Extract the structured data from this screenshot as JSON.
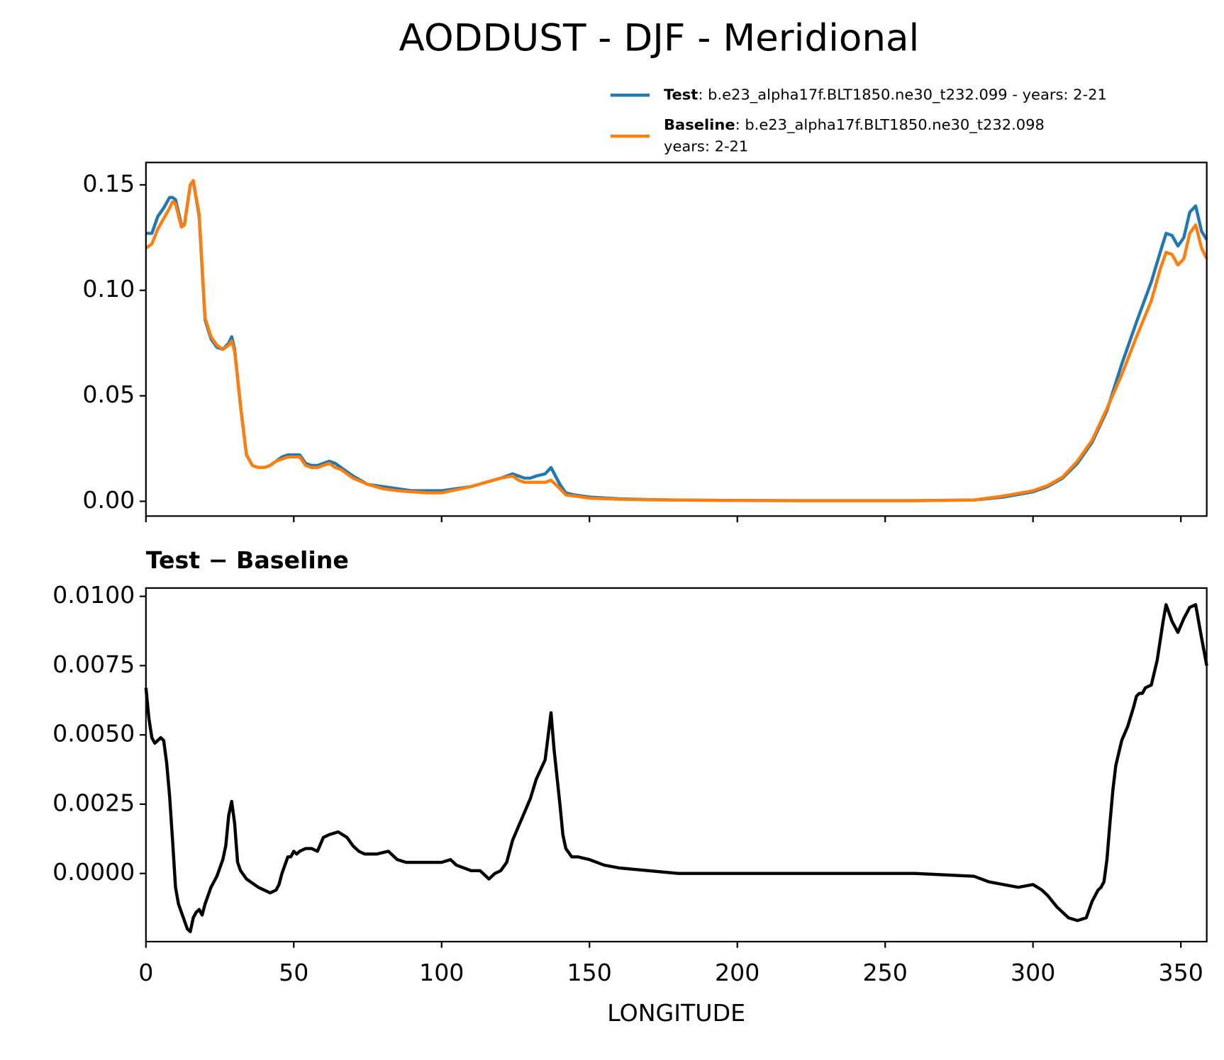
{
  "title": "AODDUST - DJF - Meridional",
  "chart_data": [
    {
      "type": "line",
      "x": [
        0,
        2,
        4,
        6,
        8,
        9,
        10,
        12,
        13,
        15,
        16,
        18,
        20,
        22,
        24,
        26,
        28,
        29,
        30,
        32,
        34,
        36,
        38,
        40,
        42,
        44,
        46,
        48,
        50,
        52,
        54,
        56,
        58,
        60,
        62,
        64,
        66,
        70,
        75,
        80,
        85,
        90,
        95,
        100,
        105,
        110,
        115,
        120,
        124,
        126,
        128,
        130,
        132,
        135,
        137,
        140,
        142,
        145,
        150,
        160,
        170,
        180,
        200,
        220,
        240,
        260,
        280,
        290,
        300,
        305,
        310,
        315,
        320,
        325,
        330,
        335,
        340,
        343,
        345,
        347,
        349,
        351,
        353,
        355,
        357,
        358.75
      ],
      "series": [
        {
          "name": "Test",
          "description": [
            ": b.e23_alpha17f.BLT1850.ne30_t232.099 - years: 2-21"
          ],
          "color": "#1f77b4",
          "values": [
            0.127,
            0.127,
            0.135,
            0.139,
            0.144,
            0.144,
            0.143,
            0.131,
            0.131,
            0.15,
            0.152,
            0.135,
            0.086,
            0.077,
            0.073,
            0.072,
            0.075,
            0.078,
            0.072,
            0.045,
            0.022,
            0.017,
            0.016,
            0.016,
            0.017,
            0.019,
            0.021,
            0.022,
            0.022,
            0.022,
            0.018,
            0.017,
            0.017,
            0.018,
            0.019,
            0.018,
            0.016,
            0.012,
            0.008,
            0.007,
            0.006,
            0.005,
            0.005,
            0.005,
            0.006,
            0.007,
            0.009,
            0.011,
            0.013,
            0.012,
            0.011,
            0.011,
            0.012,
            0.013,
            0.016,
            0.008,
            0.004,
            0.003,
            0.002,
            0.0012,
            0.0008,
            0.0006,
            0.0004,
            0.0003,
            0.0003,
            0.0003,
            0.0006,
            0.002,
            0.0045,
            0.007,
            0.011,
            0.018,
            0.028,
            0.043,
            0.065,
            0.085,
            0.104,
            0.118,
            0.127,
            0.126,
            0.121,
            0.125,
            0.137,
            0.14,
            0.128,
            0.124
          ]
        },
        {
          "name": "Baseline",
          "description": [
            ": b.e23_alpha17f.BLT1850.ne30_t232.098",
            "years: 2-21"
          ],
          "color": "#ff7f0e",
          "values": [
            0.12,
            0.122,
            0.129,
            0.134,
            0.139,
            0.142,
            0.141,
            0.13,
            0.131,
            0.15,
            0.152,
            0.136,
            0.087,
            0.078,
            0.074,
            0.072,
            0.074,
            0.076,
            0.071,
            0.045,
            0.022,
            0.017,
            0.016,
            0.016,
            0.017,
            0.019,
            0.02,
            0.021,
            0.021,
            0.021,
            0.017,
            0.016,
            0.016,
            0.017,
            0.018,
            0.016,
            0.015,
            0.011,
            0.008,
            0.006,
            0.005,
            0.0045,
            0.004,
            0.004,
            0.0055,
            0.007,
            0.009,
            0.011,
            0.012,
            0.01,
            0.009,
            0.009,
            0.009,
            0.009,
            0.01,
            0.006,
            0.003,
            0.0025,
            0.0015,
            0.001,
            0.0007,
            0.0006,
            0.0004,
            0.0003,
            0.0003,
            0.0003,
            0.0006,
            0.0025,
            0.005,
            0.0075,
            0.0115,
            0.019,
            0.029,
            0.044,
            0.06,
            0.078,
            0.095,
            0.11,
            0.118,
            0.117,
            0.112,
            0.115,
            0.127,
            0.131,
            0.12,
            0.115
          ]
        }
      ],
      "xlim": [
        0,
        358.75
      ],
      "xticks": [
        0,
        50,
        100,
        150,
        200,
        250,
        300,
        350
      ],
      "xticklabels": false,
      "ylim": [
        -0.007,
        0.1606
      ],
      "yticks": [
        {
          "value": 0,
          "label": "0.00"
        },
        {
          "value": 0.05,
          "label": "0.05"
        },
        {
          "value": 0.1,
          "label": "0.10"
        },
        {
          "value": 0.15,
          "label": "0.15"
        }
      ],
      "legend": "above right"
    },
    {
      "type": "line",
      "title": "Test − Baseline",
      "xlabel": "LONGITUDE",
      "color": "#000000",
      "x": [
        0,
        1,
        2,
        3,
        4,
        5,
        6,
        7,
        8,
        9,
        10,
        11,
        12,
        14,
        15,
        16,
        17,
        18,
        19,
        20,
        22,
        24,
        26,
        27,
        28,
        29,
        30,
        31,
        32,
        34,
        38,
        42,
        44,
        45,
        46,
        48,
        49,
        50,
        51,
        52,
        54,
        56,
        58,
        60,
        62,
        65,
        68,
        70,
        72,
        74,
        78,
        82,
        85,
        88,
        95,
        100,
        103,
        105,
        110,
        113,
        115,
        116,
        118,
        120,
        122,
        124,
        126,
        128,
        130,
        132,
        135,
        137,
        138,
        140,
        141,
        142,
        144,
        146,
        150,
        155,
        160,
        170,
        180,
        200,
        220,
        240,
        260,
        280,
        285,
        290,
        295,
        300,
        303,
        305,
        308,
        312,
        315,
        318,
        319,
        320,
        322,
        323,
        324,
        325,
        326,
        327,
        328,
        330,
        332,
        334,
        335,
        336,
        337,
        338,
        340,
        342,
        344,
        345,
        347,
        349,
        351,
        353,
        355,
        357,
        358.75
      ],
      "values": [
        0.0067,
        0.0056,
        0.0049,
        0.0047,
        0.0048,
        0.0049,
        0.0048,
        0.004,
        0.0028,
        0.0012,
        -0.0005,
        -0.0011,
        -0.0014,
        -0.002,
        -0.0021,
        -0.0016,
        -0.0014,
        -0.0013,
        -0.0015,
        -0.0011,
        -0.0005,
        -0.0001,
        0.0005,
        0.001,
        0.0021,
        0.0026,
        0.0018,
        0.0004,
        0.0001,
        -0.0002,
        -0.0005,
        -0.0007,
        -0.0006,
        -0.0004,
        0,
        0.0006,
        0.0006,
        0.0008,
        0.0007,
        0.0008,
        0.0009,
        0.0009,
        0.0008,
        0.0013,
        0.0014,
        0.0015,
        0.0013,
        0.001,
        0.0008,
        0.0007,
        0.0007,
        0.0008,
        0.0005,
        0.0004,
        0.0004,
        0.0004,
        0.0005,
        0.0003,
        0.0001,
        0.0001,
        -0.0001,
        -0.0002,
        0,
        0.0001,
        0.0004,
        0.0012,
        0.0017,
        0.0022,
        0.0027,
        0.0034,
        0.0041,
        0.0058,
        0.0045,
        0.0025,
        0.0014,
        0.0009,
        0.0006,
        0.0006,
        0.0005,
        0.0003,
        0.0002,
        0.0001,
        0,
        0,
        0,
        0,
        0,
        -0.0001,
        -0.0003,
        -0.0004,
        -0.0005,
        -0.0004,
        -0.0006,
        -0.0008,
        -0.0012,
        -0.0016,
        -0.0017,
        -0.0016,
        -0.0013,
        -0.001,
        -0.0006,
        -0.0005,
        -0.0003,
        0.0005,
        0.0018,
        0.003,
        0.0039,
        0.0048,
        0.0053,
        0.006,
        0.0064,
        0.0065,
        0.0065,
        0.0067,
        0.0068,
        0.0077,
        0.0091,
        0.0097,
        0.0091,
        0.0087,
        0.0092,
        0.0096,
        0.0097,
        0.0085,
        0.0075
      ],
      "xlim": [
        0,
        358.75
      ],
      "xticks": [
        0,
        50,
        100,
        150,
        200,
        250,
        300,
        350
      ],
      "ylim": [
        -0.00246,
        0.0103
      ],
      "yticks": [
        {
          "value": 0,
          "label": "0.0000"
        },
        {
          "value": 0.0025,
          "label": "0.0025"
        },
        {
          "value": 0.005,
          "label": "0.0050"
        },
        {
          "value": 0.0075,
          "label": "0.0075"
        },
        {
          "value": 0.01,
          "label": "0.0100"
        }
      ]
    }
  ]
}
